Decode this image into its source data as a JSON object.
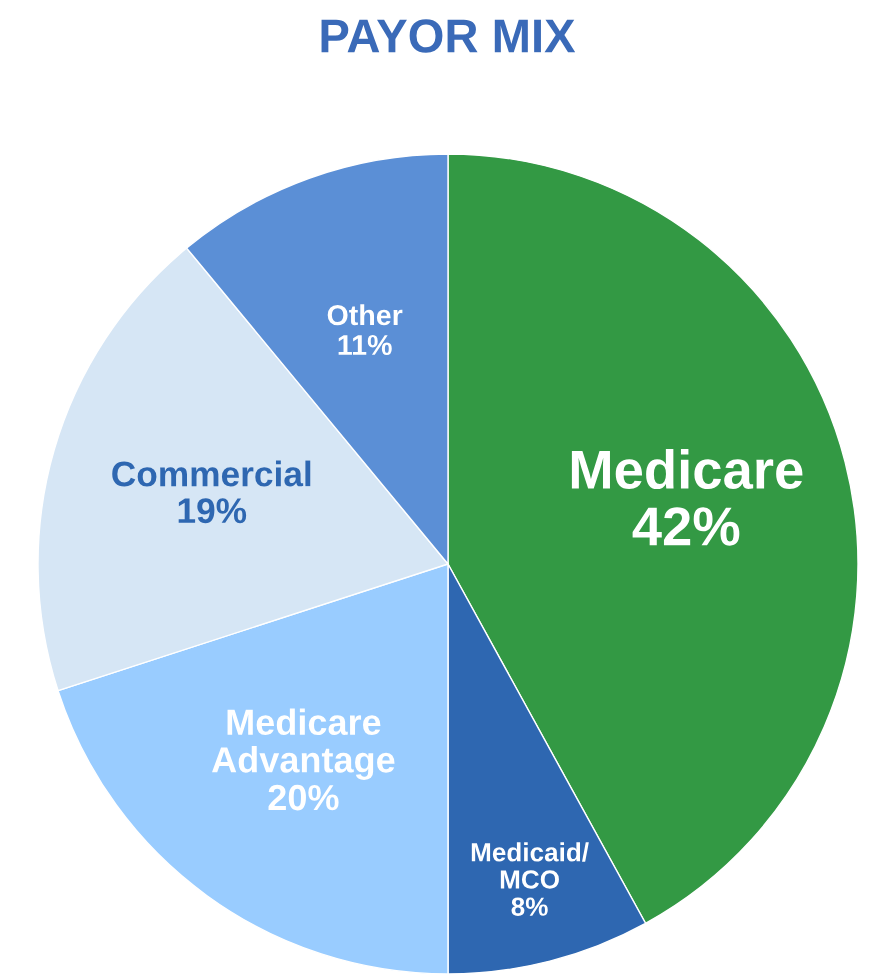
{
  "chart_data": {
    "type": "pie",
    "title": "PAYOR MIX",
    "categories": [
      "Medicare",
      "Medicaid/\nMCO",
      "Medicare\nAdvantage",
      "Commercial",
      "Other"
    ],
    "values": [
      42,
      8,
      20,
      19,
      11
    ],
    "value_labels": [
      "42%",
      "8%",
      "20%",
      "19%",
      "11%"
    ],
    "colors": [
      "#339944",
      "#2e67b1",
      "#99ccff",
      "#d6e6f5",
      "#5b8fd6"
    ]
  }
}
